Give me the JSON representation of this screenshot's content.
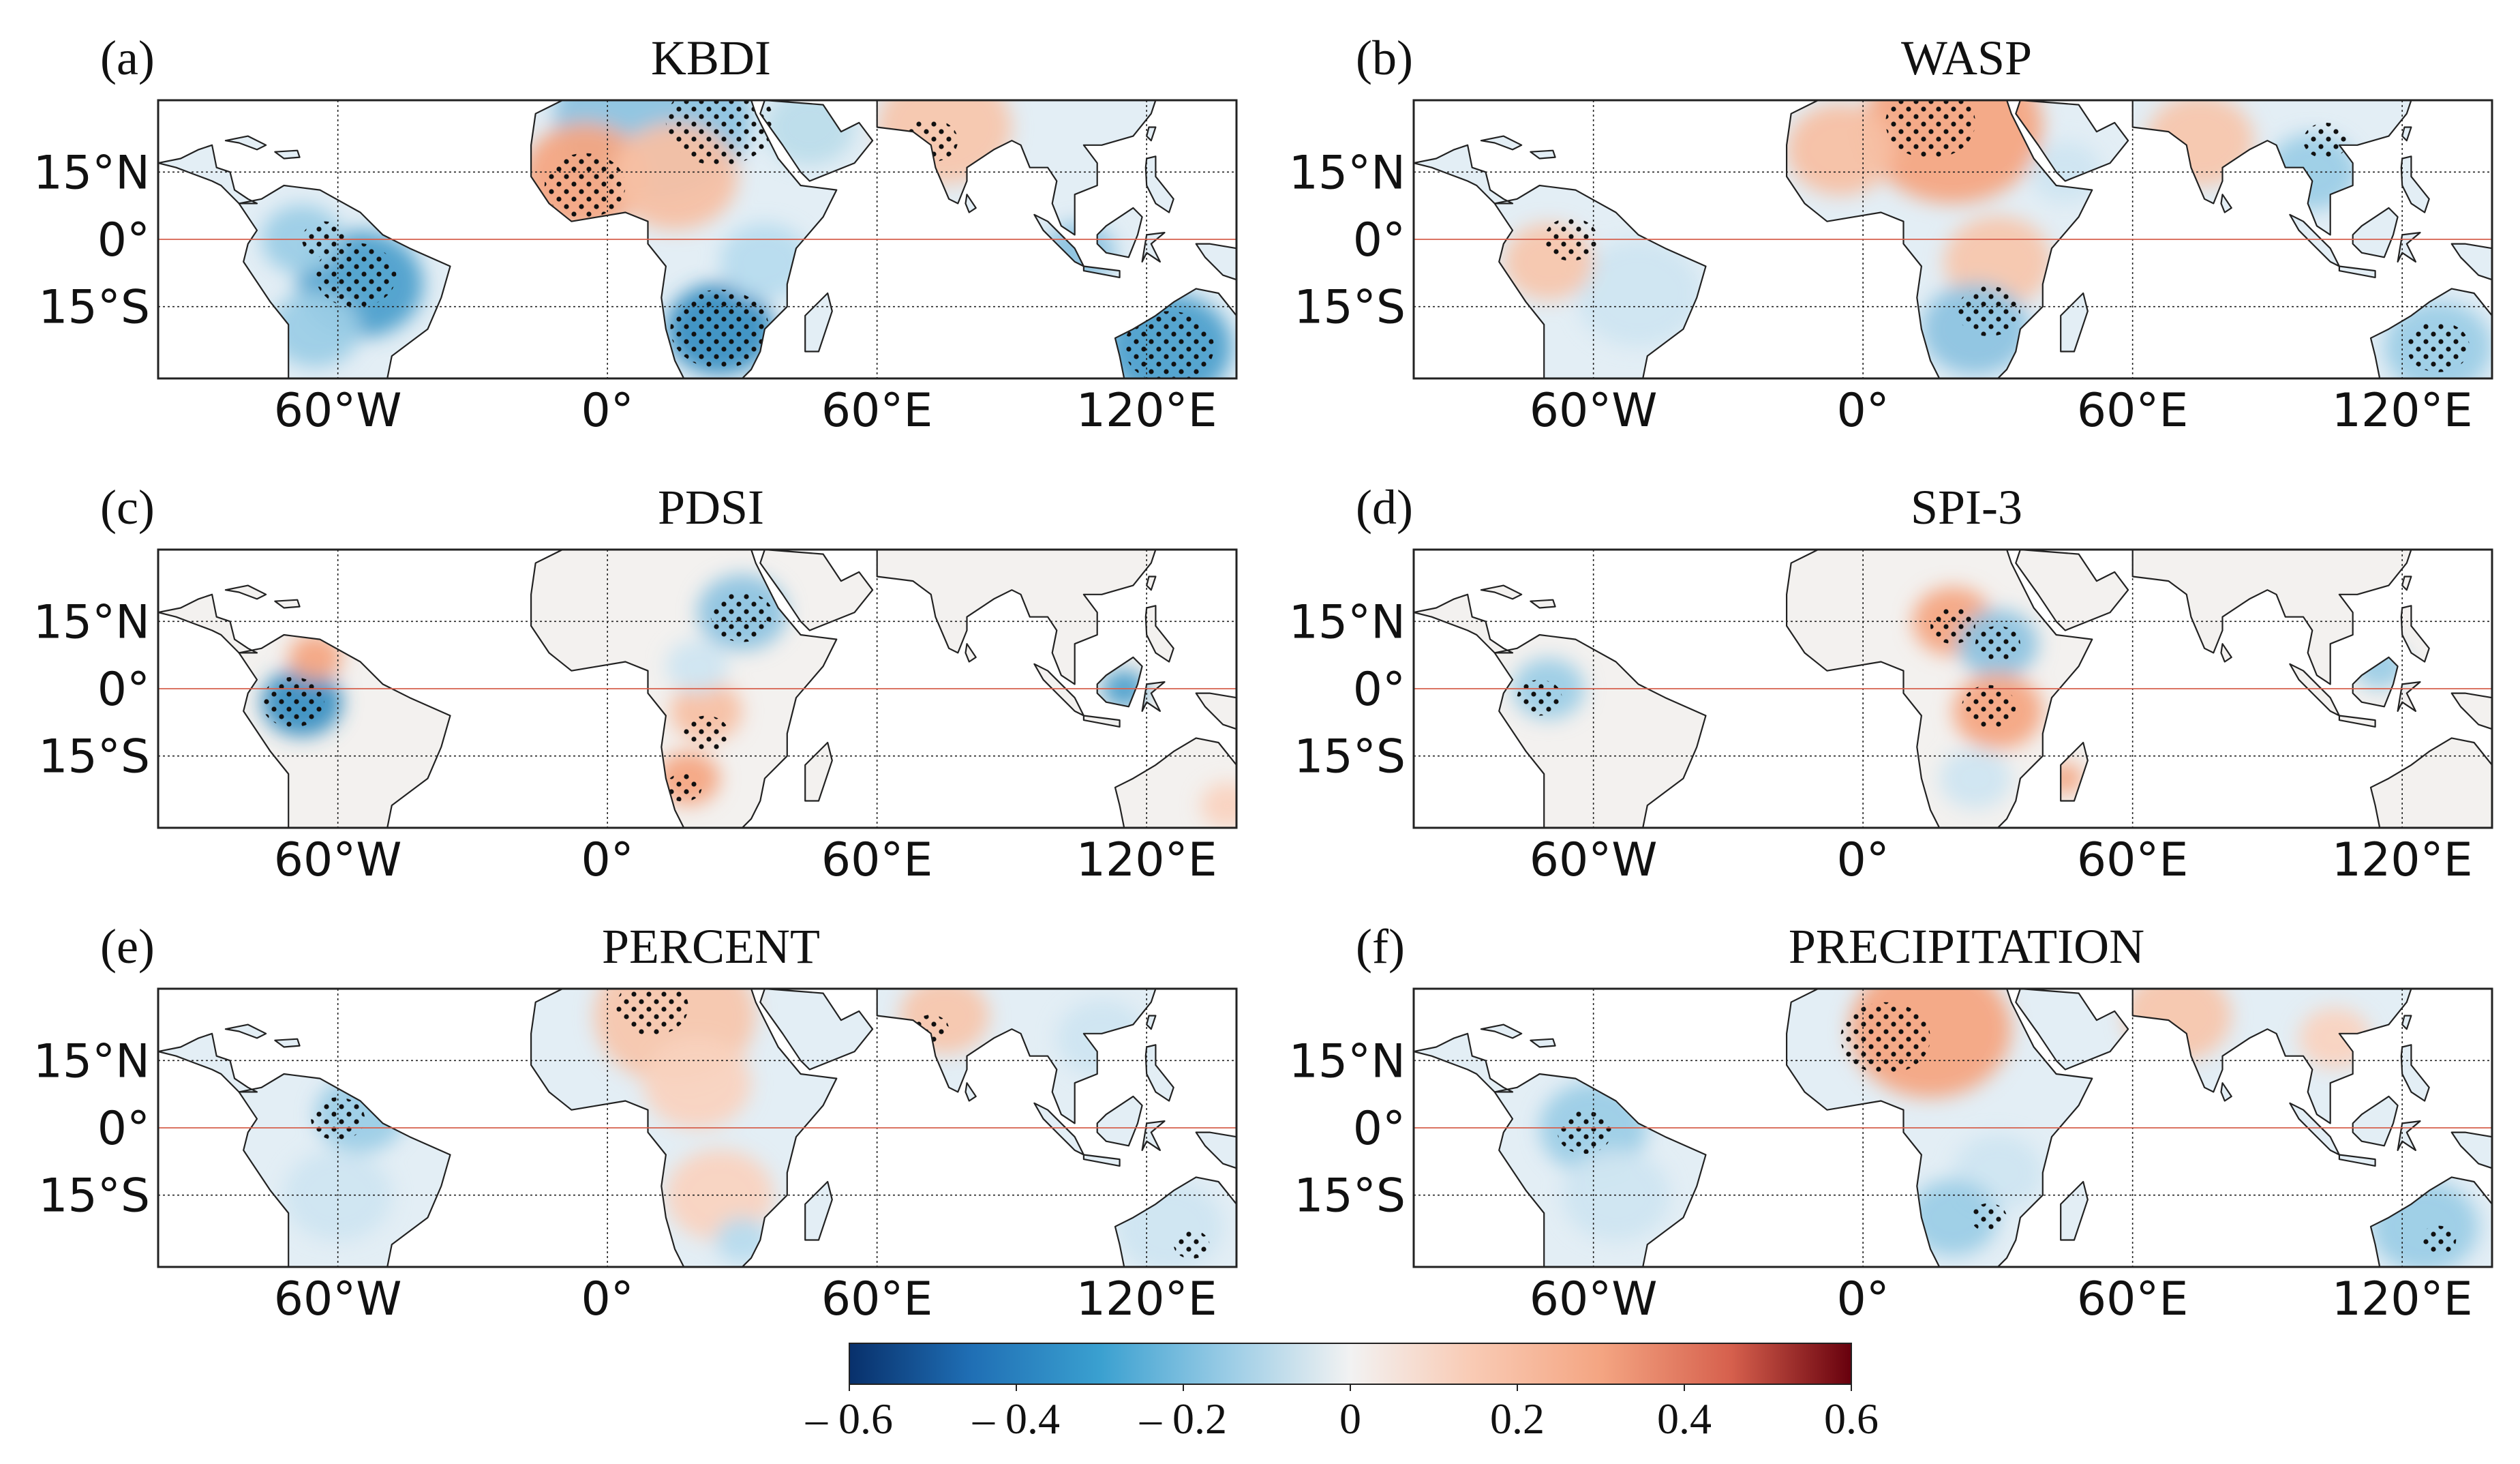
{
  "figure": {
    "panels": [
      {
        "letter": "(a)",
        "title": "KBDI",
        "variant": "kbdi"
      },
      {
        "letter": "(b)",
        "title": "WASP",
        "variant": "wasp"
      },
      {
        "letter": "(c)",
        "title": "PDSI",
        "variant": "pdsi"
      },
      {
        "letter": "(d)",
        "title": "SPI-3",
        "variant": "spi"
      },
      {
        "letter": "(e)",
        "title": "PERCENT",
        "variant": "percent"
      },
      {
        "letter": "(f)",
        "title": "PRECIPITATION",
        "variant": "precip"
      }
    ],
    "lat_ticks": [
      "15°N",
      "0°",
      "15°S"
    ],
    "lon_ticks": [
      "60°W",
      "0°",
      "60°E",
      "120°E"
    ],
    "colorbar": {
      "ticks": [
        "– 0.6",
        "– 0.4",
        "– 0.2",
        "0",
        "0.2",
        "0.4",
        "0.6"
      ],
      "range": [
        -0.6,
        0.6
      ],
      "colors": [
        "#08306b",
        "#1f6eb4",
        "#3aa0d0",
        "#9ccde6",
        "#eef4f7",
        "#f9dccb",
        "#f4a582",
        "#d6604d",
        "#a50f15",
        "#67000d"
      ]
    }
  }
}
